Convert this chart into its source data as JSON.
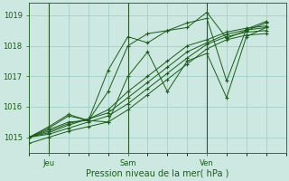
{
  "xlabel": "Pression niveau de la mer( hPa )",
  "bg_color": "#cce8e0",
  "grid_color": "#99ccbf",
  "line_color": "#1a5c1a",
  "vline_color": "#2d5a2d",
  "marker": "+",
  "ylim": [
    1014.5,
    1019.4
  ],
  "yticks": [
    1015,
    1016,
    1017,
    1018,
    1019
  ],
  "xtick_labels": [
    "Jeu",
    "Sam",
    "Ven"
  ],
  "xtick_positions": [
    1,
    5,
    9
  ],
  "xlim": [
    0,
    13
  ],
  "series": [
    [
      1014.8,
      1015.0,
      1015.2,
      1015.35,
      1015.5,
      1015.9,
      1016.4,
      1016.9,
      1017.4,
      1017.9,
      1018.2,
      1018.35,
      1018.4
    ],
    [
      1015.0,
      1015.1,
      1015.3,
      1015.5,
      1015.7,
      1016.1,
      1016.6,
      1017.1,
      1017.6,
      1018.05,
      1018.3,
      1018.45,
      1018.5
    ],
    [
      1015.0,
      1015.15,
      1015.4,
      1015.6,
      1015.8,
      1016.3,
      1016.8,
      1017.3,
      1017.8,
      1018.1,
      1018.38,
      1018.52,
      1018.6
    ],
    [
      1015.0,
      1015.2,
      1015.45,
      1015.6,
      1015.9,
      1016.5,
      1017.0,
      1017.5,
      1018.0,
      1018.2,
      1018.45,
      1018.58,
      1018.65
    ],
    [
      1015.0,
      1015.25,
      1015.5,
      1015.55,
      1015.5,
      1017.0,
      1017.8,
      1016.5,
      1017.5,
      1017.75,
      1016.3,
      1018.3,
      1018.6
    ],
    [
      1015.0,
      1015.3,
      1015.7,
      1015.55,
      1016.5,
      1018.0,
      1018.4,
      1018.5,
      1018.6,
      1019.1,
      1018.25,
      1018.5,
      1018.75
    ],
    [
      1015.0,
      1015.35,
      1015.75,
      1015.55,
      1017.2,
      1018.3,
      1018.1,
      1018.5,
      1018.75,
      1018.9,
      1016.85,
      1018.55,
      1018.8
    ]
  ],
  "x_count": 13
}
